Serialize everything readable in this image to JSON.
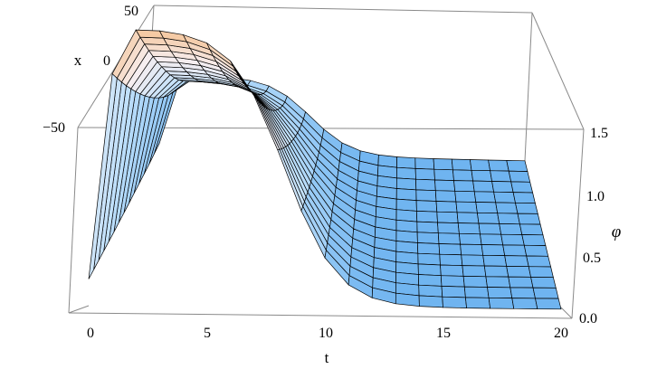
{
  "chart_data": {
    "type": "surface3d",
    "xlabel": "t",
    "ylabel": "x",
    "zlabel": "φ",
    "xlim": [
      0,
      20
    ],
    "ylim": [
      -50,
      50
    ],
    "zlim": [
      0,
      1.5
    ],
    "x_ticks": [
      "0",
      "5",
      "10",
      "15",
      "20"
    ],
    "y_ticks": [
      "50",
      "0",
      "−50"
    ],
    "z_ticks": [
      "1.5",
      "1.0",
      "0.5",
      "0.0"
    ],
    "mesh": {
      "t_lines": 20,
      "x_lines": 14
    },
    "surface_description": "phi(t,x) rises sharply near t≈1 at x≈50 to ~1.5, plateaus, then decays toward 0 after t≈9",
    "colors": {
      "peak": "#f4c08f",
      "mid": "#f7eef0",
      "low": "#6fb4f0",
      "box": "#8a8a8a"
    }
  }
}
